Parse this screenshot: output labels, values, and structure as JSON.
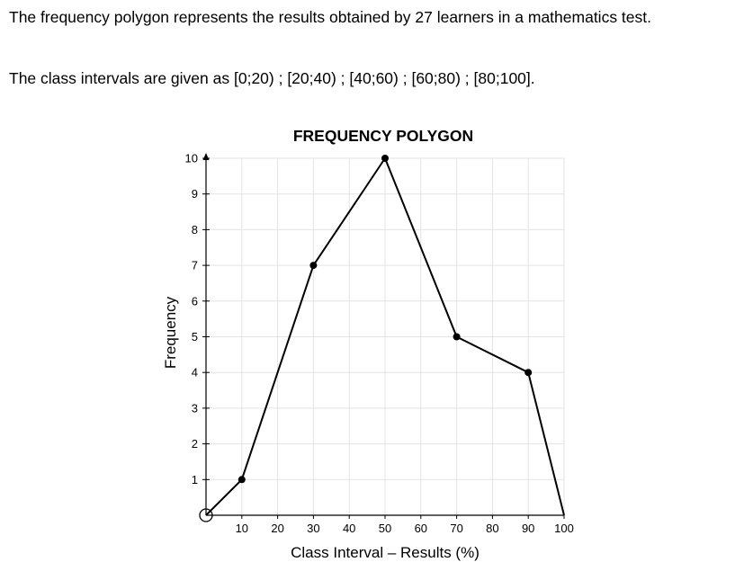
{
  "intro": {
    "paragraph1": "The frequency polygon represents the results obtained by 27 learners in a mathematics test.",
    "paragraph2_prefix": "The class intervals are given as ",
    "intervals": "[0;20) ; [20;40) ; [40;60) ; [60;80) ; [80;100]",
    "paragraph2_suffix": "."
  },
  "chart_data": {
    "type": "line",
    "title": "FREQUENCY POLYGON",
    "xlabel": "Class Interval – Results (%)",
    "ylabel": "Frequency",
    "x": [
      0,
      10,
      30,
      50,
      70,
      90,
      100
    ],
    "y": [
      0,
      1,
      7,
      10,
      5,
      4,
      0
    ],
    "xlim": [
      0,
      100
    ],
    "ylim": [
      0,
      10
    ],
    "xticks": [
      10,
      20,
      30,
      40,
      50,
      60,
      70,
      80,
      90,
      100
    ],
    "yticks": [
      1,
      2,
      3,
      4,
      5,
      6,
      7,
      8,
      9,
      10
    ],
    "grid": true,
    "markers": "filled circles",
    "origin_marker": "open circle",
    "line_color": "#000000",
    "grid_color": "#e3e3e3"
  }
}
